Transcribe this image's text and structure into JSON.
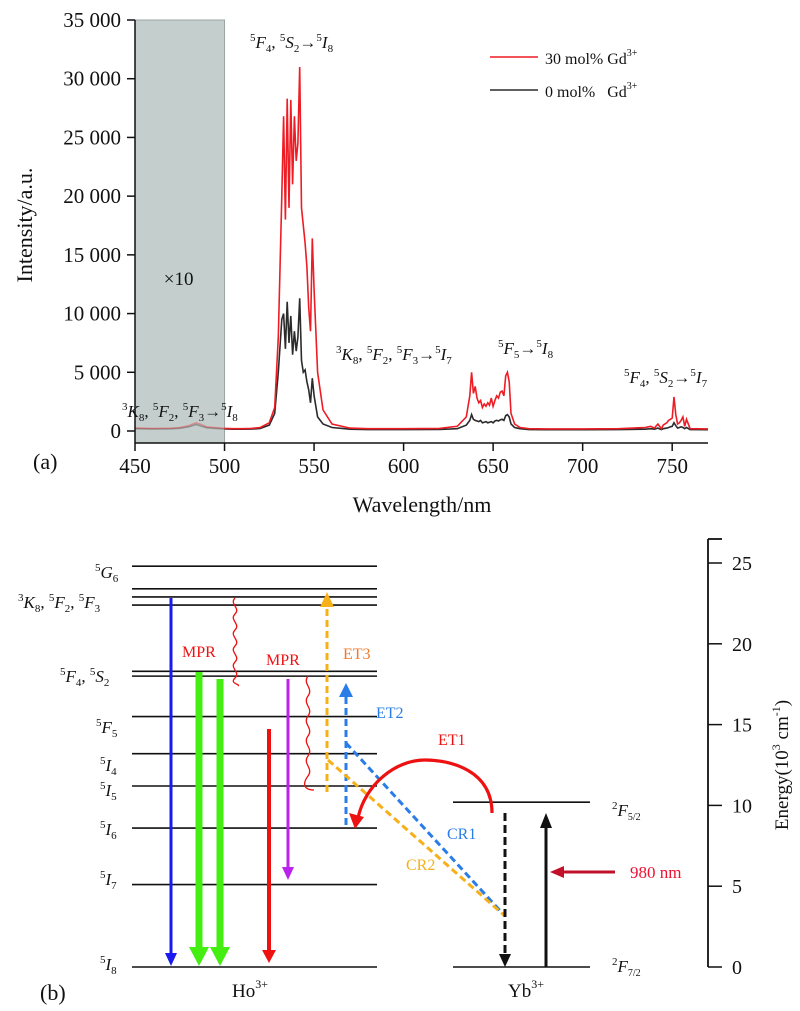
{
  "chart_data": [
    {
      "panel_label": "(a)",
      "type": "line",
      "title": "",
      "xlabel": "Wavelength/nm",
      "ylabel": "Intensity/a.u.",
      "xlim": [
        450,
        770
      ],
      "ylim": [
        -1200,
        35000
      ],
      "xticks": [
        450,
        500,
        550,
        600,
        650,
        700,
        750
      ],
      "xtick_labels": [
        "450",
        "500",
        "550",
        "600",
        "650",
        "700",
        "750"
      ],
      "yticks": [
        0,
        5000,
        10000,
        15000,
        20000,
        25000,
        30000,
        35000
      ],
      "ytick_labels": [
        "0",
        "5 000",
        "10 000",
        "15 000",
        "20 000",
        "25 000",
        "30 000",
        "35 000"
      ],
      "grid": false,
      "legend_position": "top-right",
      "shaded_region": {
        "x_range": [
          450,
          500
        ],
        "label": "×10",
        "color": "#c4cfcd"
      },
      "series": [
        {
          "name": "30 mol% Gd3+",
          "legend_main": "30 mol% Gd",
          "legend_sup": "3+",
          "color": "#ee1c24",
          "x": [
            450,
            460,
            470,
            475,
            480,
            484,
            487,
            490,
            495,
            500,
            505,
            510,
            515,
            520,
            525,
            528,
            530,
            532,
            533,
            534,
            535,
            536,
            537,
            538,
            539,
            540,
            541,
            542,
            543,
            544,
            545,
            546,
            547,
            548,
            549,
            550,
            552,
            555,
            560,
            570,
            580,
            600,
            620,
            630,
            635,
            637,
            638,
            639,
            640,
            641,
            642,
            643,
            644,
            645,
            646,
            647,
            648,
            649,
            650,
            651,
            652,
            653,
            654,
            655,
            656,
            657,
            658,
            659,
            660,
            662,
            665,
            670,
            680,
            700,
            720,
            735,
            738,
            740,
            742,
            744,
            745,
            747,
            748,
            749,
            750,
            751,
            752,
            753,
            754,
            755,
            756,
            757,
            758,
            760,
            770
          ],
          "y": [
            250,
            220,
            240,
            300,
            450,
            700,
            550,
            350,
            280,
            220,
            200,
            200,
            220,
            300,
            700,
            2000,
            8000,
            20000,
            26800,
            18000,
            28300,
            19000,
            28200,
            21000,
            26800,
            23000,
            24500,
            31000,
            19000,
            17500,
            16000,
            14000,
            10500,
            8500,
            16400,
            12000,
            5000,
            1800,
            600,
            250,
            200,
            200,
            220,
            400,
            1200,
            3000,
            5000,
            3200,
            3800,
            2800,
            2400,
            2600,
            2000,
            2300,
            2100,
            2400,
            2200,
            2800,
            2100,
            2600,
            3000,
            2800,
            3300,
            3400,
            3000,
            4700,
            5000,
            4200,
            1500,
            600,
            300,
            200,
            180,
            180,
            200,
            300,
            400,
            250,
            600,
            200,
            500,
            700,
            900,
            1000,
            1100,
            2900,
            1400,
            600,
            700,
            900,
            1200,
            400,
            1000,
            200,
            180
          ]
        },
        {
          "name": "0 mol% Gd3+",
          "legend_main": "0 mol%   Gd",
          "legend_sup": "3+",
          "color": "#2b2b2b",
          "x": [
            450,
            460,
            470,
            475,
            480,
            484,
            487,
            490,
            495,
            500,
            505,
            510,
            515,
            520,
            525,
            528,
            530,
            532,
            533,
            534,
            535,
            536,
            537,
            538,
            539,
            540,
            541,
            542,
            543,
            544,
            545,
            546,
            547,
            548,
            549,
            550,
            552,
            555,
            560,
            570,
            580,
            600,
            620,
            630,
            635,
            637,
            638,
            639,
            640,
            641,
            642,
            643,
            644,
            645,
            646,
            647,
            648,
            649,
            650,
            651,
            652,
            653,
            654,
            655,
            656,
            657,
            658,
            659,
            660,
            662,
            665,
            670,
            680,
            700,
            720,
            735,
            738,
            740,
            742,
            744,
            745,
            747,
            748,
            749,
            750,
            751,
            752,
            753,
            754,
            755,
            756,
            757,
            758,
            760,
            770
          ],
          "y": [
            200,
            180,
            190,
            230,
            350,
            550,
            420,
            280,
            220,
            180,
            150,
            150,
            160,
            220,
            500,
            1500,
            5000,
            9500,
            10000,
            7000,
            11000,
            7500,
            9800,
            6500,
            8500,
            6800,
            8000,
            11300,
            6000,
            5000,
            5200,
            4200,
            3500,
            2400,
            4500,
            3000,
            1200,
            600,
            300,
            150,
            120,
            120,
            130,
            200,
            500,
            900,
            1400,
            1000,
            900,
            850,
            800,
            900,
            700,
            750,
            800,
            700,
            750,
            800,
            700,
            850,
            900,
            850,
            950,
            1000,
            900,
            1300,
            1400,
            1200,
            600,
            300,
            200,
            120,
            110,
            110,
            120,
            150,
            200,
            150,
            250,
            120,
            200,
            250,
            300,
            350,
            400,
            700,
            450,
            250,
            300,
            350,
            300,
            200,
            300,
            120,
            110
          ]
        }
      ],
      "annotations": [
        {
          "id": "green",
          "text_html": "<tspan class='sup'>5</tspan><tspan font-style='italic'>F</tspan><tspan class='sub'>4</tspan>, <tspan class='sup'>5</tspan><tspan font-style='italic'>S</tspan><tspan class='sub'>2</tspan>→<tspan class='sup'>5</tspan><tspan font-style='italic'>I</tspan><tspan class='sub'>8</tspan>",
          "text": "5F4, 5S2→5I8"
        },
        {
          "id": "blue",
          "text": "3K8, 5F2, 5F3→5I8"
        },
        {
          "id": "red1",
          "text": "3K8, 5F2, 5F3→5I7"
        },
        {
          "id": "red2",
          "text": "5F5→5I8"
        },
        {
          "id": "nir",
          "text": "5F4, 5S2→5I7"
        }
      ]
    },
    {
      "panel_label": "(b)",
      "type": "diagram",
      "title": "",
      "ylabel": "Energy(10^3 cm^-1)",
      "ylim": [
        0,
        26
      ],
      "yticks": [
        0,
        5,
        10,
        15,
        20,
        25
      ],
      "ytick_labels": [
        "0",
        "5",
        "10",
        "15",
        "20",
        "25"
      ],
      "ions": [
        {
          "name": "Ho3+",
          "label_main": "Ho",
          "label_sup": "3+",
          "levels": [
            {
              "label": "5I8",
              "energy": 0
            },
            {
              "label": "5I7",
              "energy": 5.1
            },
            {
              "label": "5I6",
              "energy": 8.6
            },
            {
              "label": "5I5",
              "energy": 11.2
            },
            {
              "label": "5I4",
              "energy": 13.2
            },
            {
              "label": "5F5",
              "energy": 15.5
            },
            {
              "label": "5S2",
              "energy": 18.0
            },
            {
              "label": "5F4",
              "energy": 18.3
            },
            {
              "label": "5F3",
              "energy": 22.4
            },
            {
              "label": "5F2",
              "energy": 22.9
            },
            {
              "label": "3K8",
              "energy": 23.4
            },
            {
              "label": "5G6",
              "energy": 24.8
            }
          ]
        },
        {
          "name": "Yb3+",
          "label_main": "Yb",
          "label_sup": "3+",
          "levels": [
            {
              "label": "2F7/2",
              "energy": 0
            },
            {
              "label": "2F5/2",
              "energy": 10.2
            }
          ]
        }
      ],
      "transitions": [
        {
          "name": "blue-emission",
          "from": 22.4,
          "to": 0,
          "color": "#1a1aee",
          "style": "solid"
        },
        {
          "name": "green-emission-1",
          "from": 18.3,
          "to": 0,
          "color": "#44ee11",
          "style": "solid-thick"
        },
        {
          "name": "green-emission-2",
          "from": 18.0,
          "to": 0,
          "color": "#44ee11",
          "style": "solid-thick"
        },
        {
          "name": "red-emission",
          "from": 15.5,
          "to": 0,
          "color": "#ee1111",
          "style": "solid"
        },
        {
          "name": "nir-emission",
          "from": 18.0,
          "to": 5.1,
          "color": "#bb22ee",
          "style": "solid"
        },
        {
          "name": "ET3",
          "from": 13.2,
          "to": 23.4,
          "color": "#f5b01a",
          "style": "dashed",
          "label": "ET3",
          "label_color": "#f27a2c"
        },
        {
          "name": "ET2",
          "from": 8.6,
          "to": 18.0,
          "color": "#2a7de8",
          "style": "dashed",
          "label": "ET2",
          "label_color": "#2a7de8"
        },
        {
          "name": "ET1",
          "from": "Yb 2F5/2",
          "to": "Ho 5I6",
          "color": "#ee1111",
          "style": "arc",
          "label": "ET1",
          "label_color": "#ee1111"
        },
        {
          "name": "CR1",
          "color": "#2a7de8",
          "style": "dashed",
          "label": "CR1",
          "label_color": "#2a7de8"
        },
        {
          "name": "CR2",
          "color": "#f5b01a",
          "style": "dashed",
          "label": "CR2",
          "label_color": "#f5b01a"
        },
        {
          "name": "MPR-1",
          "from": 22.4,
          "to": 18.3,
          "color": "#ee1111",
          "style": "wavy",
          "label": "MPR"
        },
        {
          "name": "MPR-2",
          "from": 18.0,
          "to": 11.2,
          "color": "#ee1111",
          "style": "wavy",
          "label": "MPR"
        },
        {
          "name": "Yb-absorption",
          "from": 0,
          "to": 10.2,
          "color": "#111111",
          "style": "solid"
        },
        {
          "name": "Yb-relax",
          "from": 10.2,
          "to": 0,
          "color": "#111111",
          "style": "dashed"
        }
      ],
      "pump": {
        "label": "980 nm",
        "color": "#c0102a",
        "text_color": "#ee1133"
      }
    }
  ],
  "labels": {
    "panel_a": "(a)",
    "panel_b": "(b)",
    "x10": "×10",
    "mpr": "MPR",
    "et1": "ET1",
    "et2": "ET2",
    "et3": "ET3",
    "cr1": "CR1",
    "cr2": "CR2",
    "pump": "980 nm",
    "energy_axis_main": "Energy(10",
    "energy_axis_sup1": "3",
    "energy_axis_mid": " cm",
    "energy_axis_sup2": "-1",
    "energy_axis_end": ")"
  }
}
